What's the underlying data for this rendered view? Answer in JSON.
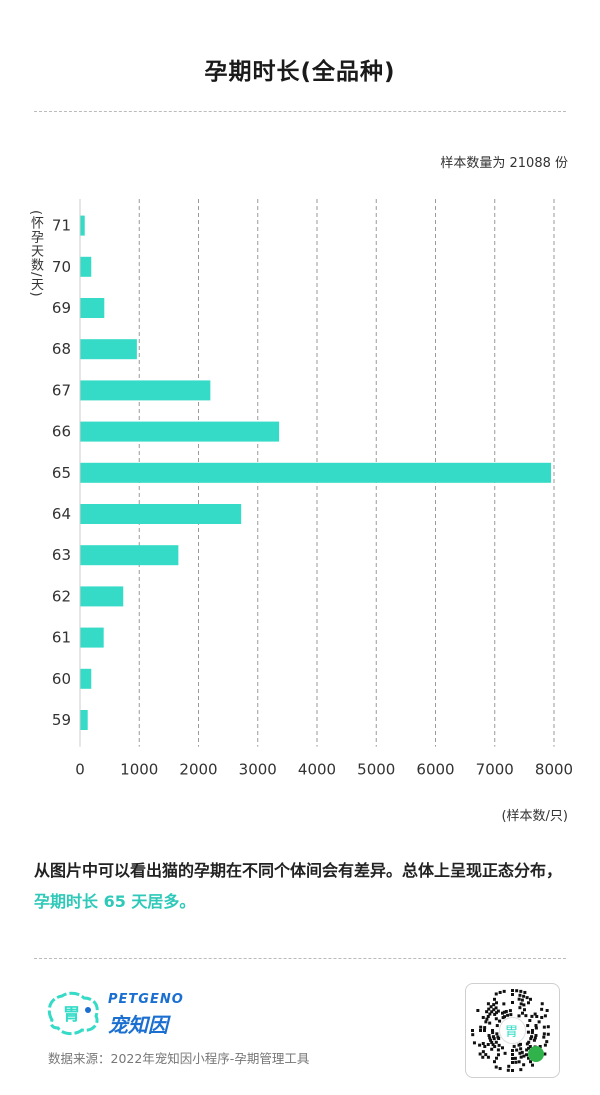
{
  "title": "孕期时长(全品种)",
  "sample_note": "样本数量为 21088 份",
  "chart_data": {
    "type": "bar",
    "orientation": "horizontal",
    "ylabel": "(怀孕天数/天)",
    "xlabel": "(样本数/只)",
    "xlim": [
      0,
      8000
    ],
    "xticks": [
      0,
      1000,
      2000,
      3000,
      4000,
      5000,
      6000,
      7000,
      8000
    ],
    "categories": [
      "71",
      "70",
      "69",
      "68",
      "67",
      "66",
      "65",
      "64",
      "63",
      "62",
      "61",
      "60",
      "59"
    ],
    "values": [
      80,
      190,
      410,
      960,
      2200,
      3360,
      7950,
      2720,
      1660,
      730,
      400,
      190,
      130
    ],
    "color": "#35dbc7",
    "grid": "vertical dashed"
  },
  "summary": {
    "text": "从图片中可以看出猫的孕期在不同个体间会有差异。总体上呈现正态分布，",
    "highlight": "孕期时长 65 天居多。"
  },
  "footer": {
    "brand_en": "PETGENO",
    "brand_cn": "宠知因",
    "source": "数据来源：2022年宠知因小程序-孕期管理工具"
  }
}
